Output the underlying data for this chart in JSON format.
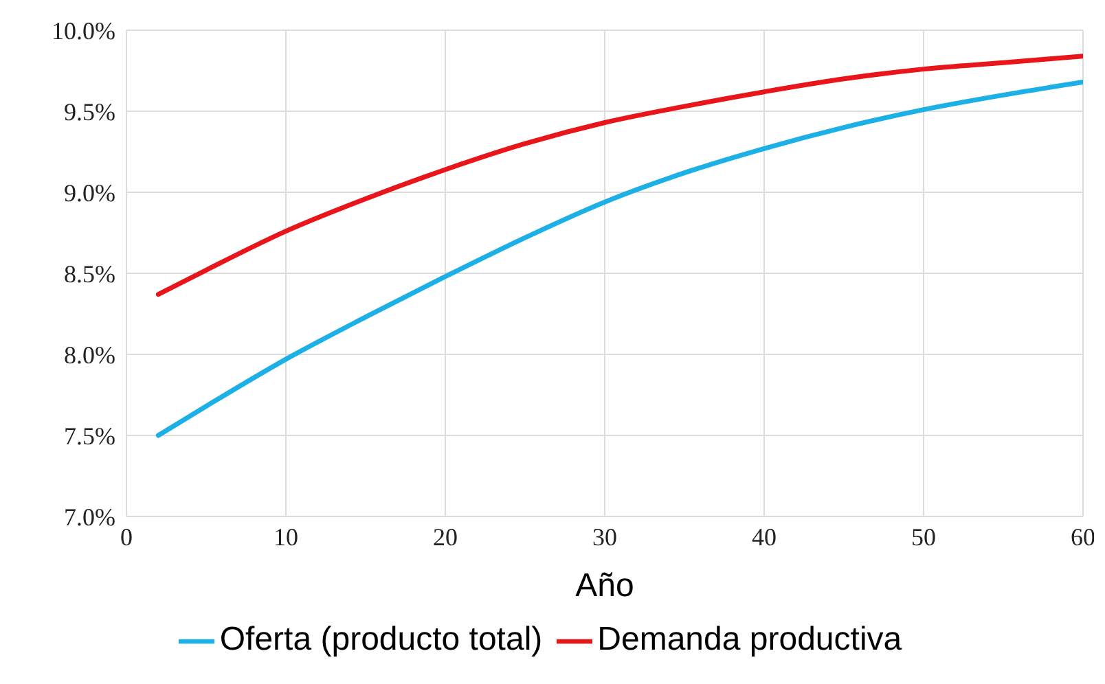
{
  "chart_data": {
    "type": "line",
    "xlabel": "Año",
    "x": [
      2,
      5,
      10,
      15,
      20,
      25,
      30,
      35,
      40,
      45,
      50,
      55,
      60
    ],
    "series": [
      {
        "name": "Oferta (producto total)",
        "color": "#1cb0e6",
        "values": [
          7.5,
          7.68,
          7.97,
          8.23,
          8.48,
          8.72,
          8.94,
          9.12,
          9.27,
          9.4,
          9.51,
          9.6,
          9.68
        ]
      },
      {
        "name": "Demanda productiva",
        "color": "#e8151b",
        "values": [
          8.37,
          8.52,
          8.76,
          8.96,
          9.14,
          9.3,
          9.43,
          9.53,
          9.62,
          9.7,
          9.76,
          9.8,
          9.84
        ]
      }
    ],
    "xlim": [
      0,
      60
    ],
    "xticks": [
      0,
      10,
      20,
      30,
      40,
      50,
      60
    ],
    "ylim": [
      7,
      10
    ],
    "yticks": [
      {
        "value": 7,
        "label": "7.0%"
      },
      {
        "value": 7.5,
        "label": "7.5%"
      },
      {
        "value": 8,
        "label": "8.0%"
      },
      {
        "value": 8.5,
        "label": "8.5%"
      },
      {
        "value": 9,
        "label": "9.0%"
      },
      {
        "value": 9.5,
        "label": "9.5%"
      },
      {
        "value": 10,
        "label": "10.0%"
      }
    ],
    "grid": true,
    "legend": "bottom",
    "marker": "none",
    "line_style": "solid"
  }
}
